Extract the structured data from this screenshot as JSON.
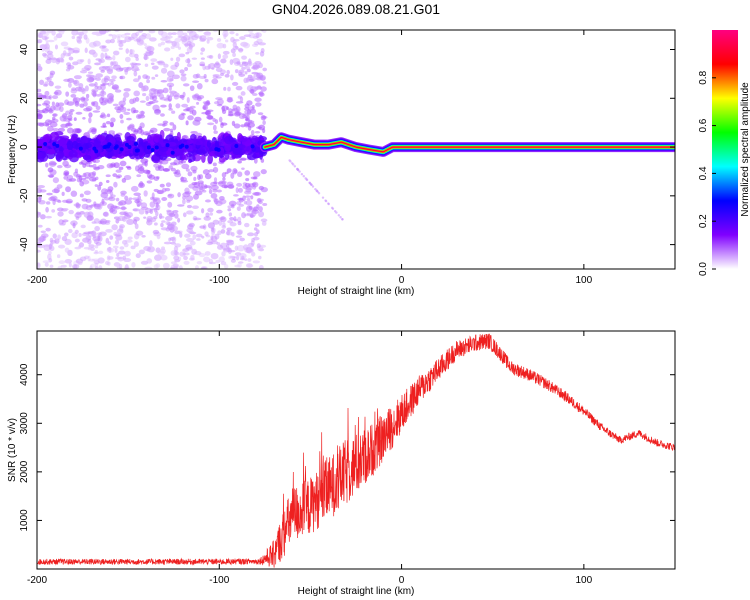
{
  "title": "GN04.2026.089.08.21.G01",
  "chart_data": [
    {
      "type": "heatmap",
      "title": "GN04.2026.089.08.21.G01",
      "xlabel": "Height of straight line (km)",
      "ylabel": "Frequency (Hz)",
      "xlim": [
        -200,
        150
      ],
      "ylim": [
        -50,
        48
      ],
      "xticks": [
        -200,
        -100,
        0,
        100
      ],
      "yticks": [
        -40,
        -20,
        0,
        20,
        40
      ],
      "colorbar": {
        "label": "Normalized spectral amplitude",
        "range": [
          0,
          1
        ],
        "ticks": [
          0.0,
          0.2,
          0.4,
          0.6,
          0.8
        ],
        "tick_labels": [
          "0.0",
          "0.2",
          "0.4",
          "0.6",
          "0.8"
        ],
        "colors": [
          "#ffffff",
          "#8000ff",
          "#0000ff",
          "#00ffff",
          "#00ff00",
          "#ffff00",
          "#ff0000",
          "#ff0080"
        ]
      },
      "ridge": {
        "x": [
          -75,
          -70,
          -66,
          -62,
          -55,
          -48,
          -40,
          -33,
          -25,
          -18,
          -10,
          -5,
          0,
          20,
          50,
          100,
          150
        ],
        "freq": [
          0,
          1,
          4,
          3,
          2,
          1,
          1,
          2,
          0,
          -1,
          -2,
          0,
          0,
          0,
          0,
          0,
          0
        ]
      },
      "noise_region": {
        "x_from": -200,
        "x_to": -75,
        "core_freq": 0
      }
    },
    {
      "type": "line",
      "xlabel": "Height of straight line (km)",
      "ylabel": "SNR (10 * v/v)",
      "xlim": [
        -200,
        150
      ],
      "ylim": [
        0,
        4900
      ],
      "xticks": [
        -200,
        -100,
        0,
        100
      ],
      "yticks": [
        1000,
        2000,
        3000,
        4000
      ],
      "color": "#ee2020",
      "series": [
        {
          "name": "SNR",
          "x": [
            -200,
            -150,
            -100,
            -78,
            -70,
            -65,
            -60,
            -50,
            -40,
            -30,
            -20,
            -10,
            0,
            10,
            20,
            30,
            40,
            48,
            55,
            60,
            70,
            80,
            90,
            100,
            110,
            120,
            130,
            140,
            150
          ],
          "y": [
            150,
            150,
            150,
            160,
            300,
            700,
            1100,
            1300,
            1650,
            2000,
            2300,
            2700,
            3200,
            3700,
            4100,
            4500,
            4650,
            4700,
            4400,
            4150,
            4000,
            3800,
            3550,
            3250,
            2900,
            2650,
            2800,
            2600,
            2500
          ],
          "noise_amplitude": [
            60,
            60,
            60,
            60,
            300,
            500,
            600,
            600,
            650,
            700,
            600,
            500,
            400,
            300,
            250,
            200,
            180,
            170,
            150,
            140,
            130,
            120,
            110,
            100,
            90,
            80,
            80,
            80,
            80
          ]
        }
      ]
    }
  ]
}
